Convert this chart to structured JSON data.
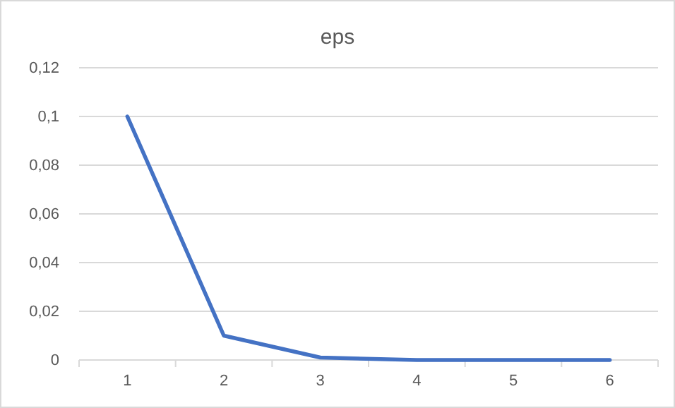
{
  "chart_data": {
    "type": "line",
    "title": "eps",
    "categories": [
      "1",
      "2",
      "3",
      "4",
      "5",
      "6"
    ],
    "series": [
      {
        "color": "#4472c4",
        "values": [
          0.1,
          0.01,
          0.001,
          0,
          0,
          0
        ]
      }
    ],
    "ylim": [
      0,
      0.12
    ],
    "yticks": [
      0,
      {
        "value": 0.02,
        "label": "0,02"
      },
      {
        "value": 0.04,
        "label": "0,04"
      },
      {
        "value": 0.06,
        "label": "0,06"
      },
      {
        "value": 0.08,
        "label": "0,08"
      },
      {
        "value": 0.1,
        "label": "0,1"
      },
      {
        "value": 0.12,
        "label": "0,12"
      }
    ],
    "grid": "y",
    "marker": "none",
    "line_style": "solid"
  }
}
